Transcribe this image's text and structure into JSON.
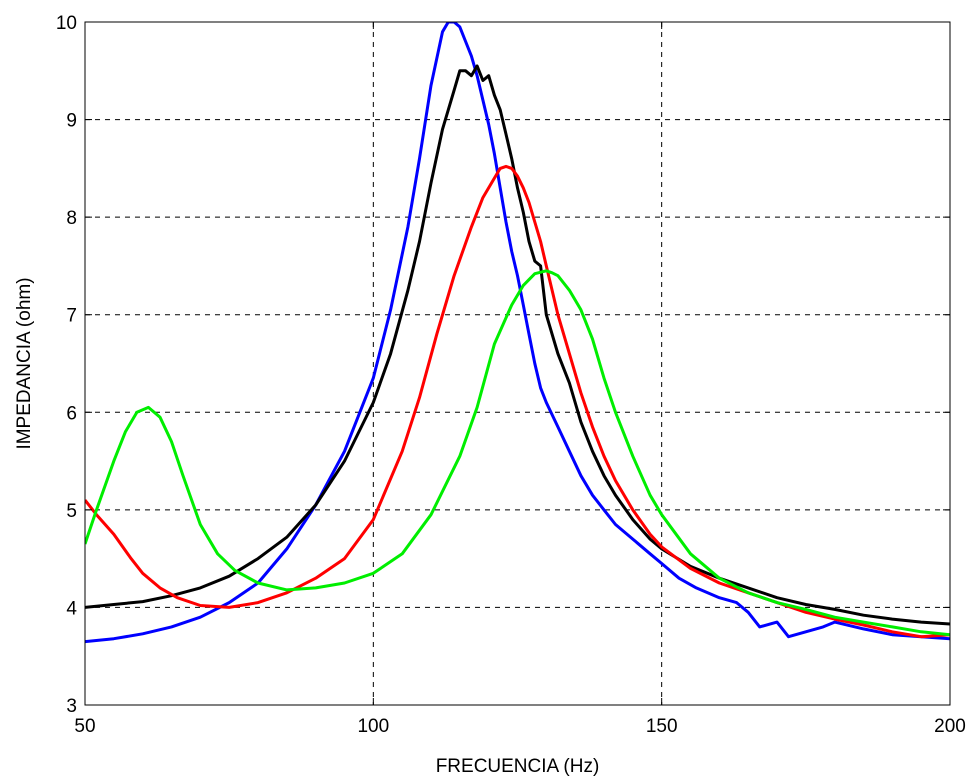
{
  "chart_data": {
    "type": "line",
    "title": "",
    "xlabel": "FRECUENCIA (Hz)",
    "ylabel": "IMPEDANCIA (ohm)",
    "xlim": [
      50,
      200
    ],
    "ylim": [
      3,
      10
    ],
    "xticks": [
      50,
      100,
      150,
      200
    ],
    "yticks": [
      3,
      4,
      5,
      6,
      7,
      8,
      9,
      10
    ],
    "grid": true,
    "legend": "none",
    "series": [
      {
        "color": "#0000ff",
        "x": [
          50,
          55,
          60,
          65,
          70,
          75,
          80,
          85,
          90,
          95,
          100,
          103,
          106,
          108,
          110,
          112,
          113,
          114,
          115,
          116,
          117,
          118,
          119,
          120,
          121,
          122,
          123,
          124,
          125,
          126,
          127,
          128,
          129,
          130,
          132,
          134,
          136,
          138,
          140,
          142,
          145,
          148,
          150,
          153,
          156,
          160,
          163,
          165,
          167,
          170,
          172,
          175,
          178,
          180,
          185,
          190,
          195,
          200
        ],
        "y": [
          3.65,
          3.68,
          3.73,
          3.8,
          3.9,
          4.05,
          4.25,
          4.6,
          5.05,
          5.6,
          6.35,
          7.05,
          7.9,
          8.6,
          9.35,
          9.9,
          10.0,
          10.0,
          9.95,
          9.8,
          9.65,
          9.45,
          9.2,
          8.95,
          8.65,
          8.3,
          7.95,
          7.65,
          7.4,
          7.1,
          6.8,
          6.5,
          6.25,
          6.1,
          5.85,
          5.6,
          5.35,
          5.15,
          5.0,
          4.85,
          4.7,
          4.55,
          4.45,
          4.3,
          4.2,
          4.1,
          4.05,
          3.95,
          3.8,
          3.85,
          3.7,
          3.75,
          3.8,
          3.85,
          3.78,
          3.72,
          3.7,
          3.68
        ]
      },
      {
        "color": "#000000",
        "x": [
          50,
          55,
          60,
          65,
          70,
          75,
          80,
          85,
          90,
          95,
          100,
          103,
          106,
          108,
          110,
          112,
          114,
          115,
          116,
          117,
          118,
          119,
          120,
          121,
          122,
          123,
          124,
          125,
          126,
          127,
          128,
          129,
          130,
          132,
          134,
          136,
          138,
          140,
          142,
          145,
          148,
          150,
          155,
          160,
          165,
          170,
          175,
          180,
          185,
          190,
          195,
          200
        ],
        "y": [
          4.0,
          4.03,
          4.06,
          4.12,
          4.2,
          4.32,
          4.5,
          4.72,
          5.05,
          5.5,
          6.1,
          6.6,
          7.25,
          7.75,
          8.35,
          8.9,
          9.3,
          9.5,
          9.5,
          9.45,
          9.55,
          9.4,
          9.45,
          9.25,
          9.1,
          8.85,
          8.6,
          8.3,
          8.05,
          7.75,
          7.55,
          7.5,
          7.0,
          6.6,
          6.3,
          5.9,
          5.6,
          5.35,
          5.15,
          4.9,
          4.7,
          4.6,
          4.42,
          4.3,
          4.2,
          4.1,
          4.03,
          3.98,
          3.92,
          3.88,
          3.85,
          3.83
        ]
      },
      {
        "color": "#ff0000",
        "x": [
          50,
          52,
          55,
          58,
          60,
          63,
          66,
          70,
          75,
          80,
          85,
          90,
          95,
          100,
          105,
          108,
          111,
          114,
          117,
          119,
          121,
          122,
          123,
          124,
          125,
          126,
          127,
          128,
          129,
          130,
          132,
          134,
          136,
          138,
          140,
          142,
          145,
          148,
          150,
          155,
          160,
          165,
          170,
          175,
          180,
          185,
          190,
          195,
          200
        ],
        "y": [
          5.1,
          4.95,
          4.75,
          4.5,
          4.35,
          4.2,
          4.1,
          4.02,
          4.0,
          4.05,
          4.15,
          4.3,
          4.5,
          4.9,
          5.6,
          6.15,
          6.8,
          7.4,
          7.9,
          8.2,
          8.4,
          8.5,
          8.52,
          8.5,
          8.42,
          8.3,
          8.15,
          7.95,
          7.75,
          7.5,
          7.0,
          6.6,
          6.2,
          5.85,
          5.55,
          5.3,
          5.0,
          4.75,
          4.62,
          4.4,
          4.25,
          4.15,
          4.05,
          3.95,
          3.88,
          3.82,
          3.75,
          3.7,
          3.72
        ]
      },
      {
        "color": "#00ee00",
        "x": [
          50,
          52,
          55,
          57,
          59,
          61,
          63,
          65,
          67,
          70,
          73,
          76,
          80,
          85,
          90,
          95,
          100,
          105,
          110,
          115,
          118,
          121,
          124,
          126,
          128,
          130,
          131,
          132,
          134,
          136,
          138,
          140,
          142,
          145,
          148,
          150,
          155,
          160,
          165,
          170,
          175,
          180,
          185,
          190,
          195,
          200
        ],
        "y": [
          4.65,
          5.0,
          5.5,
          5.8,
          6.0,
          6.05,
          5.95,
          5.7,
          5.35,
          4.85,
          4.55,
          4.38,
          4.25,
          4.18,
          4.2,
          4.25,
          4.35,
          4.55,
          4.95,
          5.55,
          6.05,
          6.7,
          7.1,
          7.3,
          7.42,
          7.45,
          7.43,
          7.4,
          7.25,
          7.05,
          6.75,
          6.35,
          6.0,
          5.55,
          5.15,
          4.95,
          4.55,
          4.3,
          4.15,
          4.05,
          3.98,
          3.9,
          3.85,
          3.8,
          3.75,
          3.72
        ]
      }
    ]
  }
}
